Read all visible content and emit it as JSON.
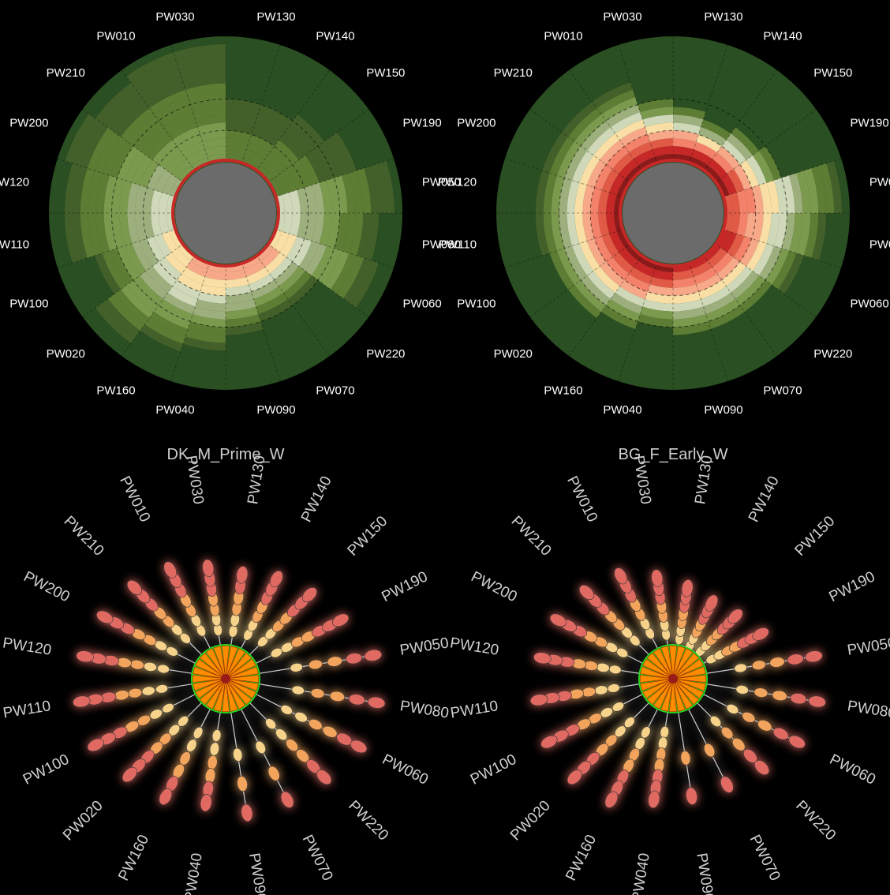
{
  "sectors": [
    "PW130",
    "PW140",
    "PW150",
    "PW190",
    "PW050",
    "PW080",
    "PW060",
    "PW220",
    "PW070",
    "PW090",
    "PW040",
    "PW160",
    "PW020",
    "PW100",
    "PW110",
    "PW120",
    "PW200",
    "PW210",
    "PW010",
    "PW030"
  ],
  "colors": {
    "background": "#000000",
    "hub": "#6b6b6b",
    "ring_scale": [
      "#8b1a1a",
      "#c62828",
      "#e05a46",
      "#f4826a",
      "#f7a889",
      "#f9dfa5",
      "#cfd8b8",
      "#9eaf7e",
      "#7c9a4e",
      "#5d7d34",
      "#44602a",
      "#2a4f22"
    ],
    "leaf_scale": [
      "#e06a62",
      "#f2a35b",
      "#f6d28a",
      "#c9d9c3",
      "#8fb6cf"
    ],
    "star_center": "#9b1b1b",
    "star_petal": "#ff8c00",
    "star_tip": "#22dd22"
  },
  "chart_data": [
    {
      "type": "radial-stacked-bar",
      "title": "",
      "categories": [
        "PW130",
        "PW140",
        "PW150",
        "PW190",
        "PW050",
        "PW080",
        "PW060",
        "PW220",
        "PW070",
        "PW090",
        "PW040",
        "PW160",
        "PW020",
        "PW100",
        "PW110",
        "PW120",
        "PW200",
        "PW210",
        "PW010",
        "PW030"
      ],
      "values": [
        9,
        9,
        10,
        12,
        16,
        14,
        15,
        9,
        9,
        10,
        12,
        13,
        15,
        12,
        15,
        15,
        16,
        15,
        16,
        16
      ],
      "max": 16,
      "inner": [
        9,
        9,
        9,
        9,
        6,
        6,
        5,
        4,
        4,
        4,
        4,
        4,
        5,
        5,
        6,
        6,
        7,
        8,
        8,
        8
      ]
    },
    {
      "type": "radial-stacked-bar",
      "title": "",
      "categories": [
        "PW130",
        "PW140",
        "PW150",
        "PW190",
        "PW050",
        "PW080",
        "PW060",
        "PW220",
        "PW070",
        "PW090",
        "PW040",
        "PW160",
        "PW020",
        "PW100",
        "PW110",
        "PW120",
        "PW200",
        "PW210",
        "PW010",
        "PW030"
      ],
      "values": [
        8,
        7,
        8,
        9,
        16,
        14,
        12,
        10,
        10,
        10,
        9,
        10,
        11,
        11,
        12,
        12,
        12,
        12,
        12,
        9
      ],
      "max": 16,
      "inner": [
        0,
        0,
        0,
        0,
        2,
        2,
        1,
        1,
        1,
        1,
        0,
        0,
        0,
        0,
        0,
        0,
        0,
        0,
        0,
        0
      ]
    },
    {
      "type": "radial-leaf-tree",
      "title": "DK_M_Prime_W",
      "categories": [
        "PW130",
        "PW140",
        "PW150",
        "PW190",
        "PW050",
        "PW080",
        "PW060",
        "PW220",
        "PW070",
        "PW090",
        "PW040",
        "PW160",
        "PW020",
        "PW100",
        "PW110",
        "PW120",
        "PW200",
        "PW210",
        "PW010",
        "PW030"
      ],
      "values": [
        6,
        7,
        7,
        7,
        5,
        5,
        6,
        6,
        3,
        3,
        6,
        6,
        7,
        7,
        7,
        7,
        7,
        7,
        7,
        7
      ],
      "depth": [
        0.62,
        0.66,
        0.7,
        0.76,
        0.88,
        0.9,
        0.88,
        0.82,
        0.8,
        0.8,
        0.74,
        0.78,
        0.8,
        0.86,
        0.86,
        0.84,
        0.8,
        0.76,
        0.72,
        0.66
      ]
    },
    {
      "type": "radial-leaf-tree",
      "title": "BG_F_Early_W",
      "categories": [
        "PW130",
        "PW140",
        "PW150",
        "PW190",
        "PW050",
        "PW080",
        "PW060",
        "PW220",
        "PW070",
        "PW090",
        "PW040",
        "PW160",
        "PW020",
        "PW100",
        "PW110",
        "PW120",
        "PW200",
        "PW210",
        "PW010",
        "PW030"
      ],
      "values": [
        7,
        7,
        7,
        7,
        5,
        5,
        5,
        5,
        2,
        2,
        7,
        7,
        7,
        7,
        7,
        7,
        7,
        7,
        7,
        7
      ],
      "depth": [
        0.54,
        0.5,
        0.52,
        0.58,
        0.84,
        0.86,
        0.82,
        0.74,
        0.7,
        0.7,
        0.72,
        0.8,
        0.82,
        0.82,
        0.8,
        0.78,
        0.76,
        0.72,
        0.68,
        0.6
      ]
    }
  ]
}
